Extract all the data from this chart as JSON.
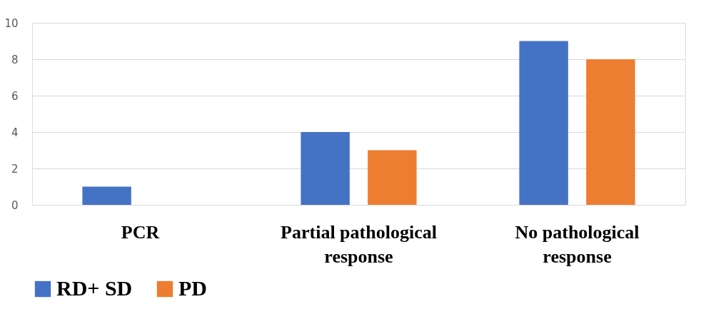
{
  "chart_data": {
    "type": "bar",
    "categories": [
      "PCR",
      "Partial pathological response",
      "No pathological response"
    ],
    "series": [
      {
        "name": "RD+ SD",
        "color": "#4472c4",
        "values": [
          1,
          4,
          9
        ]
      },
      {
        "name": "PD",
        "color": "#ed7d31",
        "values": [
          0,
          3,
          8
        ]
      }
    ],
    "ylim": [
      0,
      10
    ],
    "yticks": [
      0,
      2,
      4,
      6,
      8,
      10
    ],
    "grid": "y",
    "legend": "bottom"
  }
}
